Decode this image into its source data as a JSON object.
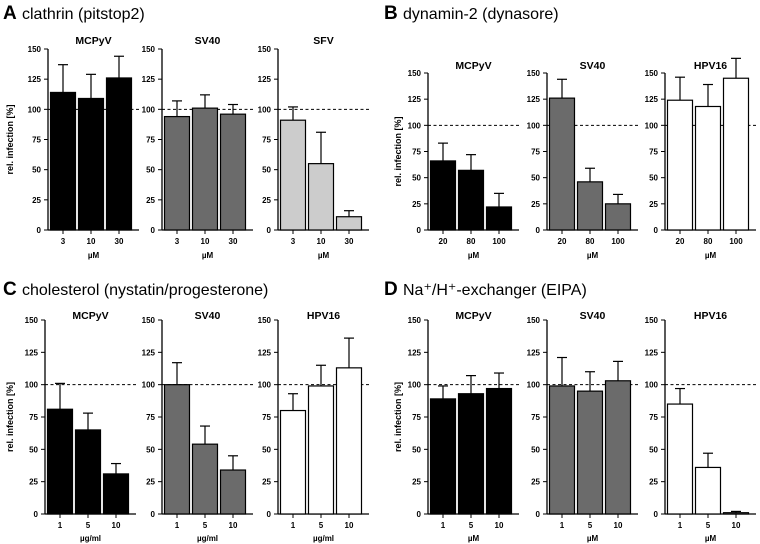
{
  "colors": {
    "black": "#000000",
    "gray": "#6b6b6b",
    "light_gray": "#cccccc",
    "white": "#ffffff"
  },
  "chart_data": [
    {
      "panel": "A",
      "title": "clathrin (pitstop2)",
      "type": "bar",
      "ylabel": "rel. infection [%]",
      "ylim": [
        0,
        150
      ],
      "yticks": [
        "0",
        "25",
        "50",
        "75",
        "100",
        "125",
        "150"
      ],
      "reference_line": 100,
      "charts": [
        {
          "title": "MCPyV",
          "categories": [
            "3",
            "10",
            "30"
          ],
          "xlabel": "µM",
          "fill": "black",
          "values": [
            114,
            109,
            126
          ],
          "errors": [
            23,
            20,
            18
          ]
        },
        {
          "title": "SV40",
          "categories": [
            "3",
            "10",
            "30"
          ],
          "xlabel": "µM",
          "fill": "gray",
          "values": [
            94,
            101,
            96
          ],
          "errors": [
            13,
            11,
            8
          ]
        },
        {
          "title": "SFV",
          "categories": [
            "3",
            "10",
            "30"
          ],
          "xlabel": "µM",
          "fill": "light_gray",
          "values": [
            91,
            55,
            11
          ],
          "errors": [
            11,
            26,
            5
          ]
        }
      ]
    },
    {
      "panel": "B",
      "title": "dynamin-2 (dynasore)",
      "type": "bar",
      "ylabel": "rel. infection [%]",
      "ylim": [
        0,
        150
      ],
      "yticks": [
        "0",
        "25",
        "50",
        "75",
        "100",
        "125",
        "150"
      ],
      "reference_line": 100,
      "charts": [
        {
          "title": "MCPyV",
          "categories": [
            "20",
            "80",
            "100"
          ],
          "xlabel": "µM",
          "fill": "black",
          "values": [
            66,
            57,
            22
          ],
          "errors": [
            17,
            15,
            13
          ]
        },
        {
          "title": "SV40",
          "categories": [
            "20",
            "80",
            "100"
          ],
          "xlabel": "µM",
          "fill": "gray",
          "values": [
            126,
            46,
            25
          ],
          "errors": [
            18,
            13,
            9
          ]
        },
        {
          "title": "HPV16",
          "categories": [
            "20",
            "80",
            "100"
          ],
          "xlabel": "µM",
          "fill": "white",
          "values": [
            124,
            118,
            145
          ],
          "errors": [
            22,
            21,
            19
          ]
        }
      ]
    },
    {
      "panel": "C",
      "title": "cholesterol (nystatin/progesterone)",
      "type": "bar",
      "ylabel": "rel. infection [%]",
      "ylim": [
        0,
        150
      ],
      "yticks": [
        "0",
        "25",
        "50",
        "75",
        "100",
        "125",
        "150"
      ],
      "reference_line": 100,
      "charts": [
        {
          "title": "MCPyV",
          "categories": [
            "1",
            "5",
            "10"
          ],
          "xlabel": "µg/ml",
          "fill": "black",
          "values": [
            81,
            65,
            31
          ],
          "errors": [
            20,
            13,
            8
          ]
        },
        {
          "title": "SV40",
          "categories": [
            "1",
            "5",
            "10"
          ],
          "xlabel": "µg/ml",
          "fill": "gray",
          "values": [
            100,
            54,
            34
          ],
          "errors": [
            17,
            14,
            11
          ]
        },
        {
          "title": "HPV16",
          "categories": [
            "1",
            "5",
            "10"
          ],
          "xlabel": "µg/ml",
          "fill": "white",
          "values": [
            80,
            99,
            113
          ],
          "errors": [
            13,
            16,
            23
          ]
        }
      ]
    },
    {
      "panel": "D",
      "title": "Na⁺/H⁺-exchanger (EIPA)",
      "type": "bar",
      "ylabel": "rel. infection [%]",
      "ylim": [
        0,
        150
      ],
      "yticks": [
        "0",
        "25",
        "50",
        "75",
        "100",
        "125",
        "150"
      ],
      "reference_line": 100,
      "charts": [
        {
          "title": "MCPyV",
          "categories": [
            "1",
            "5",
            "10"
          ],
          "xlabel": "µM",
          "fill": "black",
          "values": [
            89,
            93,
            97
          ],
          "errors": [
            10,
            14,
            12
          ]
        },
        {
          "title": "SV40",
          "categories": [
            "1",
            "5",
            "10"
          ],
          "xlabel": "µM",
          "fill": "gray",
          "values": [
            99,
            95,
            103
          ],
          "errors": [
            22,
            15,
            15
          ]
        },
        {
          "title": "HPV16",
          "categories": [
            "1",
            "5",
            "10"
          ],
          "xlabel": "µM",
          "fill": "white",
          "values": [
            85,
            36,
            1
          ],
          "errors": [
            12,
            11,
            1
          ]
        }
      ]
    }
  ]
}
